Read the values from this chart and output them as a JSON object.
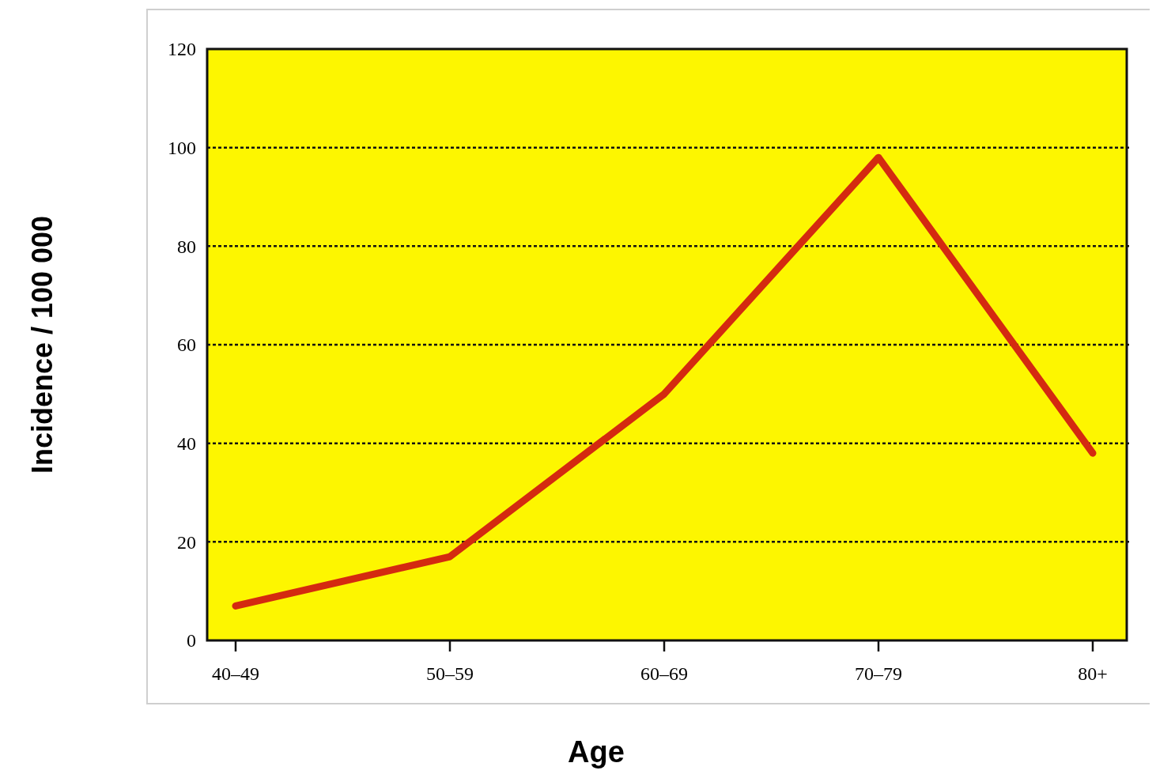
{
  "chart_data": {
    "type": "line",
    "xlabel": "Age",
    "ylabel": "Incidence / 100 000",
    "categories": [
      "40–49",
      "50–59",
      "60–69",
      "70–79",
      "80+"
    ],
    "series": [
      {
        "color": "#d42a10",
        "values": [
          7,
          17,
          50,
          98,
          38
        ]
      }
    ],
    "ylim": [
      0,
      120
    ],
    "yticks": [
      0,
      20,
      40,
      60,
      80,
      100,
      120
    ],
    "grid": "y",
    "line_style": "solid",
    "marker": "none"
  }
}
